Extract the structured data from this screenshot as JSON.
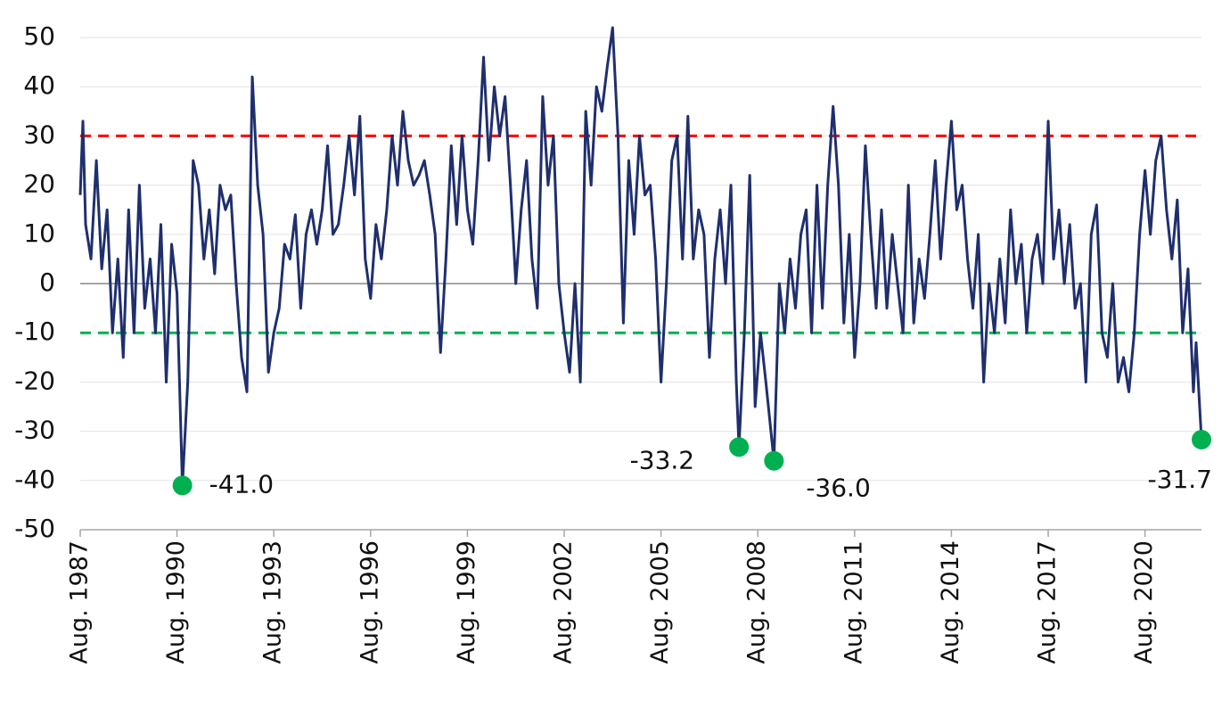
{
  "chart_data": {
    "type": "line",
    "x": [
      "1987-08",
      "1987-09",
      "1987-10",
      "1987-12",
      "1988-02",
      "1988-04",
      "1988-06",
      "1988-08",
      "1988-10",
      "1988-12",
      "1989-02",
      "1989-04",
      "1989-06",
      "1989-08",
      "1989-10",
      "1989-12",
      "1990-02",
      "1990-04",
      "1990-06",
      "1990-08",
      "1990-10",
      "1990-12",
      "1991-02",
      "1991-04",
      "1991-06",
      "1991-08",
      "1991-10",
      "1991-12",
      "1992-02",
      "1992-04",
      "1992-06",
      "1992-08",
      "1992-10",
      "1992-12",
      "1993-02",
      "1993-04",
      "1993-06",
      "1993-08",
      "1993-10",
      "1993-12",
      "1994-02",
      "1994-04",
      "1994-06",
      "1994-08",
      "1994-10",
      "1994-12",
      "1995-02",
      "1995-04",
      "1995-06",
      "1995-08",
      "1995-10",
      "1995-12",
      "1996-02",
      "1996-04",
      "1996-06",
      "1996-08",
      "1996-10",
      "1996-12",
      "1997-02",
      "1997-04",
      "1997-06",
      "1997-08",
      "1997-10",
      "1997-12",
      "1998-02",
      "1998-04",
      "1998-06",
      "1998-08",
      "1998-10",
      "1998-12",
      "1999-02",
      "1999-04",
      "1999-06",
      "1999-08",
      "1999-10",
      "1999-12",
      "2000-02",
      "2000-04",
      "2000-06",
      "2000-08",
      "2000-10",
      "2000-12",
      "2001-02",
      "2001-04",
      "2001-06",
      "2001-08",
      "2001-10",
      "2001-12",
      "2002-02",
      "2002-04",
      "2002-06",
      "2002-08",
      "2002-10",
      "2002-12",
      "2003-02",
      "2003-04",
      "2003-06",
      "2003-08",
      "2003-10",
      "2003-12",
      "2004-02",
      "2004-04",
      "2004-06",
      "2004-08",
      "2004-10",
      "2004-12",
      "2005-02",
      "2005-04",
      "2005-06",
      "2005-08",
      "2005-10",
      "2005-12",
      "2006-02",
      "2006-04",
      "2006-06",
      "2006-08",
      "2006-10",
      "2006-12",
      "2007-02",
      "2007-04",
      "2007-06",
      "2007-08",
      "2007-10",
      "2007-12",
      "2008-01",
      "2008-03",
      "2008-05",
      "2008-07",
      "2008-09",
      "2008-11",
      "2009-02",
      "2009-04",
      "2009-06",
      "2009-08",
      "2009-10",
      "2009-12",
      "2010-02",
      "2010-04",
      "2010-06",
      "2010-08",
      "2010-10",
      "2010-12",
      "2011-02",
      "2011-04",
      "2011-06",
      "2011-08",
      "2011-10",
      "2011-12",
      "2012-02",
      "2012-04",
      "2012-06",
      "2012-08",
      "2012-10",
      "2012-12",
      "2013-02",
      "2013-04",
      "2013-06",
      "2013-08",
      "2013-10",
      "2013-12",
      "2014-02",
      "2014-04",
      "2014-06",
      "2014-08",
      "2014-10",
      "2014-12",
      "2015-02",
      "2015-04",
      "2015-06",
      "2015-08",
      "2015-10",
      "2015-12",
      "2016-02",
      "2016-04",
      "2016-06",
      "2016-08",
      "2016-10",
      "2016-12",
      "2017-02",
      "2017-04",
      "2017-06",
      "2017-08",
      "2017-10",
      "2017-12",
      "2018-02",
      "2018-04",
      "2018-06",
      "2018-08",
      "2018-10",
      "2018-12",
      "2019-02",
      "2019-04",
      "2019-06",
      "2019-08",
      "2019-10",
      "2019-12",
      "2020-02",
      "2020-04",
      "2020-06",
      "2020-08",
      "2020-10",
      "2020-12",
      "2021-02",
      "2021-04",
      "2021-06",
      "2021-08",
      "2021-10",
      "2021-12",
      "2022-02",
      "2022-03",
      "2022-05"
    ],
    "series": [
      {
        "color": "#1f2f6e",
        "values": [
          18,
          33,
          12,
          5,
          25,
          3,
          15,
          -10,
          5,
          -15,
          15,
          -10,
          20,
          -5,
          5,
          -10,
          12,
          -20,
          8,
          -2,
          -41,
          -20,
          25,
          20,
          5,
          15,
          2,
          20,
          15,
          18,
          0,
          -15,
          -22,
          42,
          20,
          10,
          -18,
          -10,
          -5,
          8,
          5,
          14,
          -5,
          10,
          15,
          8,
          15,
          28,
          10,
          12,
          20,
          30,
          18,
          34,
          5,
          -3,
          12,
          5,
          15,
          30,
          20,
          35,
          25,
          20,
          22,
          25,
          18,
          10,
          -14,
          5,
          28,
          12,
          30,
          15,
          8,
          25,
          46,
          25,
          40,
          30,
          38,
          20,
          0,
          15,
          25,
          5,
          -5,
          38,
          20,
          30,
          0,
          -10,
          -18,
          0,
          -20,
          35,
          20,
          40,
          35,
          44,
          52,
          30,
          -8,
          25,
          10,
          30,
          18,
          20,
          5,
          -20,
          0,
          25,
          30,
          5,
          34,
          5,
          15,
          10,
          -15,
          5,
          15,
          0,
          20,
          -20,
          -33.2,
          -10,
          22,
          -25,
          -10,
          -20,
          -36,
          0,
          -10,
          5,
          -5,
          10,
          15,
          -10,
          20,
          -5,
          20,
          36,
          20,
          -8,
          10,
          -15,
          0,
          28,
          10,
          -5,
          15,
          -5,
          10,
          0,
          -10,
          20,
          -8,
          5,
          -3,
          10,
          25,
          5,
          20,
          33,
          15,
          20,
          5,
          -5,
          10,
          -20,
          0,
          -10,
          5,
          -8,
          15,
          0,
          8,
          -10,
          5,
          10,
          0,
          33,
          5,
          15,
          0,
          12,
          -5,
          0,
          -20,
          10,
          16,
          -10,
          -15,
          0,
          -20,
          -15,
          -22,
          -10,
          10,
          23,
          10,
          25,
          30,
          15,
          5,
          17,
          -10,
          3,
          -22,
          -12,
          -31.7
        ]
      }
    ],
    "markers": {
      "color": "#00b050",
      "x": [
        "1990-10",
        "2008-01",
        "2009-02",
        "2022-05"
      ],
      "values": [
        -41.0,
        -33.2,
        -36.0,
        -31.7
      ],
      "value_labels": [
        "-41.0",
        "-33.2",
        "-36.0",
        "-31.7"
      ]
    },
    "reference_lines": [
      {
        "value": 30,
        "color": "#ff0000"
      },
      {
        "value": -10,
        "color": "#00b050"
      }
    ],
    "zero_line_color": "#a6a6a6",
    "grid": true,
    "ylim": [
      -50,
      52
    ],
    "yticks": [
      -50,
      -40,
      -30,
      -20,
      -10,
      0,
      10,
      20,
      30,
      40,
      50
    ],
    "xlim": [
      "1987-08",
      "2022-05"
    ],
    "xticks": [
      {
        "value": "1987-08",
        "label": "Aug. 1987"
      },
      {
        "value": "1990-08",
        "label": "Aug. 1990"
      },
      {
        "value": "1993-08",
        "label": "Aug. 1993"
      },
      {
        "value": "1996-08",
        "label": "Aug. 1996"
      },
      {
        "value": "1999-08",
        "label": "Aug. 1999"
      },
      {
        "value": "2002-08",
        "label": "Aug. 2002"
      },
      {
        "value": "2005-08",
        "label": "Aug. 2005"
      },
      {
        "value": "2008-08",
        "label": "Aug. 2008"
      },
      {
        "value": "2011-08",
        "label": "Aug. 2011"
      },
      {
        "value": "2014-08",
        "label": "Aug. 2014"
      },
      {
        "value": "2017-08",
        "label": "Aug. 2017"
      },
      {
        "value": "2020-08",
        "label": "Aug. 2020"
      }
    ]
  }
}
